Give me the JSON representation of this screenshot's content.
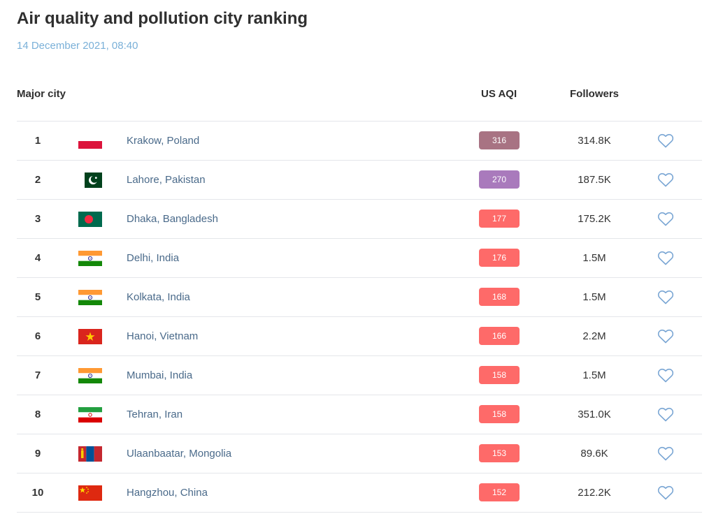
{
  "title": "Air quality and pollution city ranking",
  "date": "14 December 2021, 08:40",
  "headers": {
    "city": "Major city",
    "aqi": "US AQI",
    "followers": "Followers"
  },
  "icons": {
    "favorite": "heart-outline-icon"
  },
  "colors": {
    "date": "#7ab0d8",
    "city_link": "#4a6a8a",
    "heart": "#7aa6d4",
    "aqi_hazardous": "#a87383",
    "aqi_very_unhealthy": "#a97abc",
    "aqi_unhealthy": "#fe6a69"
  },
  "rows": [
    {
      "rank": "1",
      "city": "Krakow, Poland",
      "flag": "poland",
      "aqi": "316",
      "aqi_color": "#a87383",
      "followers": "314.8K"
    },
    {
      "rank": "2",
      "city": "Lahore, Pakistan",
      "flag": "pakistan",
      "aqi": "270",
      "aqi_color": "#a97abc",
      "followers": "187.5K"
    },
    {
      "rank": "3",
      "city": "Dhaka, Bangladesh",
      "flag": "bangladesh",
      "aqi": "177",
      "aqi_color": "#fe6a69",
      "followers": "175.2K"
    },
    {
      "rank": "4",
      "city": "Delhi, India",
      "flag": "india",
      "aqi": "176",
      "aqi_color": "#fe6a69",
      "followers": "1.5M"
    },
    {
      "rank": "5",
      "city": "Kolkata, India",
      "flag": "india",
      "aqi": "168",
      "aqi_color": "#fe6a69",
      "followers": "1.5M"
    },
    {
      "rank": "6",
      "city": "Hanoi, Vietnam",
      "flag": "vietnam",
      "aqi": "166",
      "aqi_color": "#fe6a69",
      "followers": "2.2M"
    },
    {
      "rank": "7",
      "city": "Mumbai, India",
      "flag": "india",
      "aqi": "158",
      "aqi_color": "#fe6a69",
      "followers": "1.5M"
    },
    {
      "rank": "8",
      "city": "Tehran, Iran",
      "flag": "iran",
      "aqi": "158",
      "aqi_color": "#fe6a69",
      "followers": "351.0K"
    },
    {
      "rank": "9",
      "city": "Ulaanbaatar, Mongolia",
      "flag": "mongolia",
      "aqi": "153",
      "aqi_color": "#fe6a69",
      "followers": "89.6K"
    },
    {
      "rank": "10",
      "city": "Hangzhou, China",
      "flag": "china",
      "aqi": "152",
      "aqi_color": "#fe6a69",
      "followers": "212.2K"
    }
  ]
}
